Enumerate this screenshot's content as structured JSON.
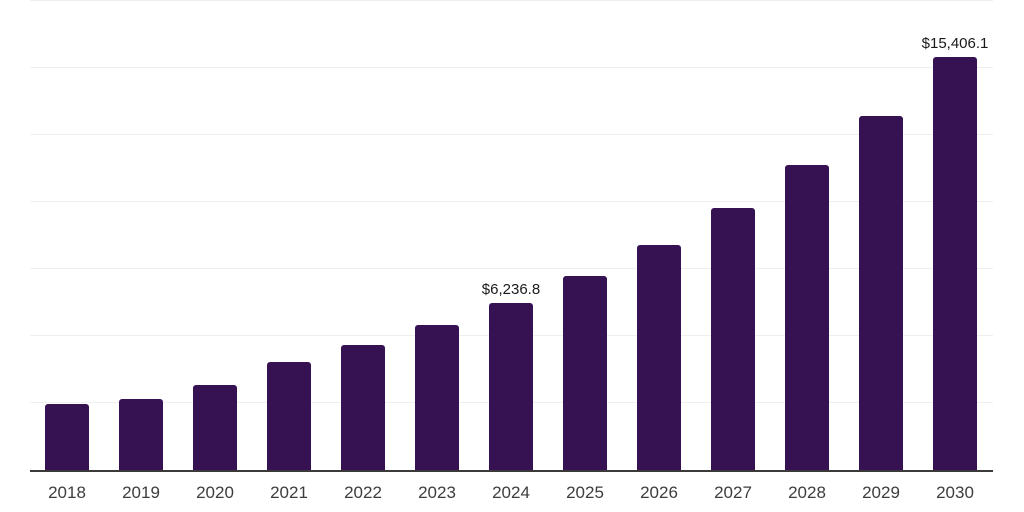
{
  "chart_data": {
    "type": "bar",
    "title": "",
    "xlabel": "",
    "ylabel": "",
    "categories": [
      "2018",
      "2019",
      "2020",
      "2021",
      "2022",
      "2023",
      "2024",
      "2025",
      "2026",
      "2027",
      "2028",
      "2029",
      "2030"
    ],
    "values": [
      2450,
      2640,
      3180,
      4040,
      4660,
      5420,
      6236.8,
      7240,
      8410,
      9770,
      11370,
      13220,
      15406.1
    ],
    "value_labels": {
      "2024": "$6,236.8",
      "2030": "$15,406.1"
    },
    "ylim": [
      0,
      17500
    ],
    "gridline_step": 2500,
    "grid": "horizontal-only",
    "legend_position": "none",
    "y_axis_ticks_visible": false
  },
  "colors": {
    "bar": "#361252",
    "background": "#ffffff",
    "gridline": "#efefef",
    "axis_line": "#3a3a3a",
    "value_label_text": "#1a1a1a",
    "axis_label_text": "#3d3d3d"
  }
}
